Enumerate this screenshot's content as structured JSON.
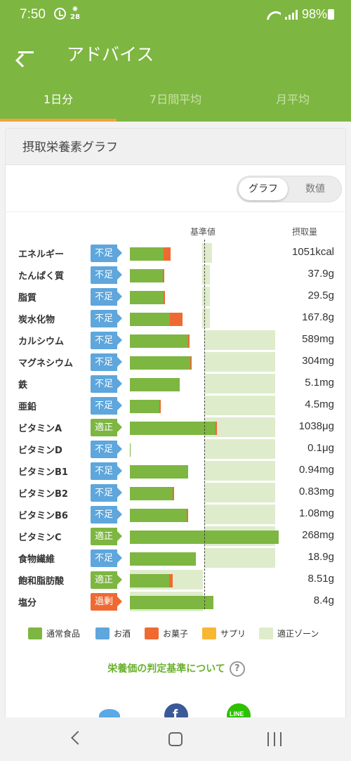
{
  "status_bar": {
    "time": "7:50",
    "calendar_badge": "28",
    "battery": "98%"
  },
  "app_bar": {
    "title": "アドバイス",
    "back_icon": "arrow-left-icon"
  },
  "tabs": [
    {
      "label": "1日分",
      "active": true
    },
    {
      "label": "7日間平均",
      "active": false
    },
    {
      "label": "月平均",
      "active": false
    }
  ],
  "card": {
    "title": "摂取栄養素グラフ"
  },
  "view_toggle": {
    "graph": "グラフ",
    "numbers": "数値",
    "selected": "グラフ"
  },
  "columns": {
    "reference": "基準値",
    "intake": "摂取量"
  },
  "colors": {
    "food": "#7db641",
    "alcohol": "#5ea6dc",
    "sweets": "#ef6a32",
    "supplement": "#f7b733",
    "zone": "#dfeccc",
    "header": "#7db641"
  },
  "chart_data": {
    "type": "bar",
    "reference_marker": 1.0,
    "categories": [
      "エネルギー",
      "たんぱく質",
      "脂質",
      "炭水化物",
      "カルシウム",
      "マグネシウム",
      "鉄",
      "亜鉛",
      "ビタミンA",
      "ビタミンD",
      "ビタミンB1",
      "ビタミンB2",
      "ビタミンB6",
      "ビタミンC",
      "食物繊維",
      "飽和脂肪酸",
      "塩分"
    ],
    "rows": [
      {
        "name": "エネルギー",
        "status": "不足",
        "food": 0.45,
        "sweets": 0.1,
        "zone": [
          0.97,
          1.1
        ],
        "value": "1051kcal"
      },
      {
        "name": "たんぱく質",
        "status": "不足",
        "food": 0.44,
        "sweets": 0.02,
        "zone": [
          0.97,
          1.08
        ],
        "value": "37.9g"
      },
      {
        "name": "脂質",
        "status": "不足",
        "food": 0.45,
        "sweets": 0.02,
        "zone": [
          0.97,
          1.08
        ],
        "value": "29.5g"
      },
      {
        "name": "炭水化物",
        "status": "不足",
        "food": 0.54,
        "sweets": 0.17,
        "zone": [
          0.97,
          1.08
        ],
        "value": "167.8g"
      },
      {
        "name": "カルシウム",
        "status": "不足",
        "food": 0.78,
        "sweets": 0.01,
        "zone": [
          1.0,
          1.95
        ],
        "value": "589mg"
      },
      {
        "name": "マグネシウム",
        "status": "不足",
        "food": 0.81,
        "sweets": 0.01,
        "zone": [
          1.0,
          1.95
        ],
        "value": "304mg"
      },
      {
        "name": "鉄",
        "status": "不足",
        "food": 0.67,
        "sweets": 0.0,
        "zone": [
          1.0,
          1.95
        ],
        "value": "5.1mg"
      },
      {
        "name": "亜鉛",
        "status": "不足",
        "food": 0.4,
        "sweets": 0.01,
        "zone": [
          1.0,
          1.95
        ],
        "value": "4.5mg"
      },
      {
        "name": "ビタミンA",
        "status": "適正",
        "food": 1.15,
        "sweets": 0.01,
        "zone": [
          1.0,
          1.95
        ],
        "value": "1038μg"
      },
      {
        "name": "ビタミンD",
        "status": "不足",
        "food": 0.01,
        "sweets": 0.0,
        "zone": [
          1.0,
          1.95
        ],
        "value": "0.1μg"
      },
      {
        "name": "ビタミンB1",
        "status": "不足",
        "food": 0.78,
        "sweets": 0.0,
        "zone": [
          1.0,
          1.95
        ],
        "value": "0.94mg"
      },
      {
        "name": "ビタミンB2",
        "status": "不足",
        "food": 0.58,
        "sweets": 0.01,
        "zone": [
          1.0,
          1.95
        ],
        "value": "0.83mg"
      },
      {
        "name": "ビタミンB6",
        "status": "不足",
        "food": 0.76,
        "sweets": 0.01,
        "zone": [
          1.0,
          1.95
        ],
        "value": "1.08mg"
      },
      {
        "name": "ビタミンC",
        "status": "適正",
        "food": 2.0,
        "sweets": 0.0,
        "zone": [
          1.0,
          1.95
        ],
        "value": "268mg"
      },
      {
        "name": "食物繊維",
        "status": "不足",
        "food": 0.89,
        "sweets": 0.0,
        "zone": [
          1.0,
          1.95
        ],
        "value": "18.9g"
      },
      {
        "name": "飽和脂肪酸",
        "status": "適正",
        "food": 0.53,
        "sweets": 0.05,
        "zone": [
          0.0,
          0.98
        ],
        "value": "8.51g"
      },
      {
        "name": "塩分",
        "status": "過剰",
        "food": 1.12,
        "sweets": 0.0,
        "zone": [
          0.0,
          0.98
        ],
        "value": "8.4g"
      }
    ]
  },
  "legend": [
    {
      "label": "通常食品",
      "color": "#7db641"
    },
    {
      "label": "お酒",
      "color": "#5ea6dc"
    },
    {
      "label": "お菓子",
      "color": "#ef6a32"
    },
    {
      "label": "サプリ",
      "color": "#f7b733"
    },
    {
      "label": "適正ゾーン",
      "color": "#dfeccc"
    }
  ],
  "judge_link": "栄養価の判定基準について",
  "help_icon": "?",
  "share_icons": [
    "twitter-icon",
    "facebook-icon",
    "line-icon"
  ]
}
